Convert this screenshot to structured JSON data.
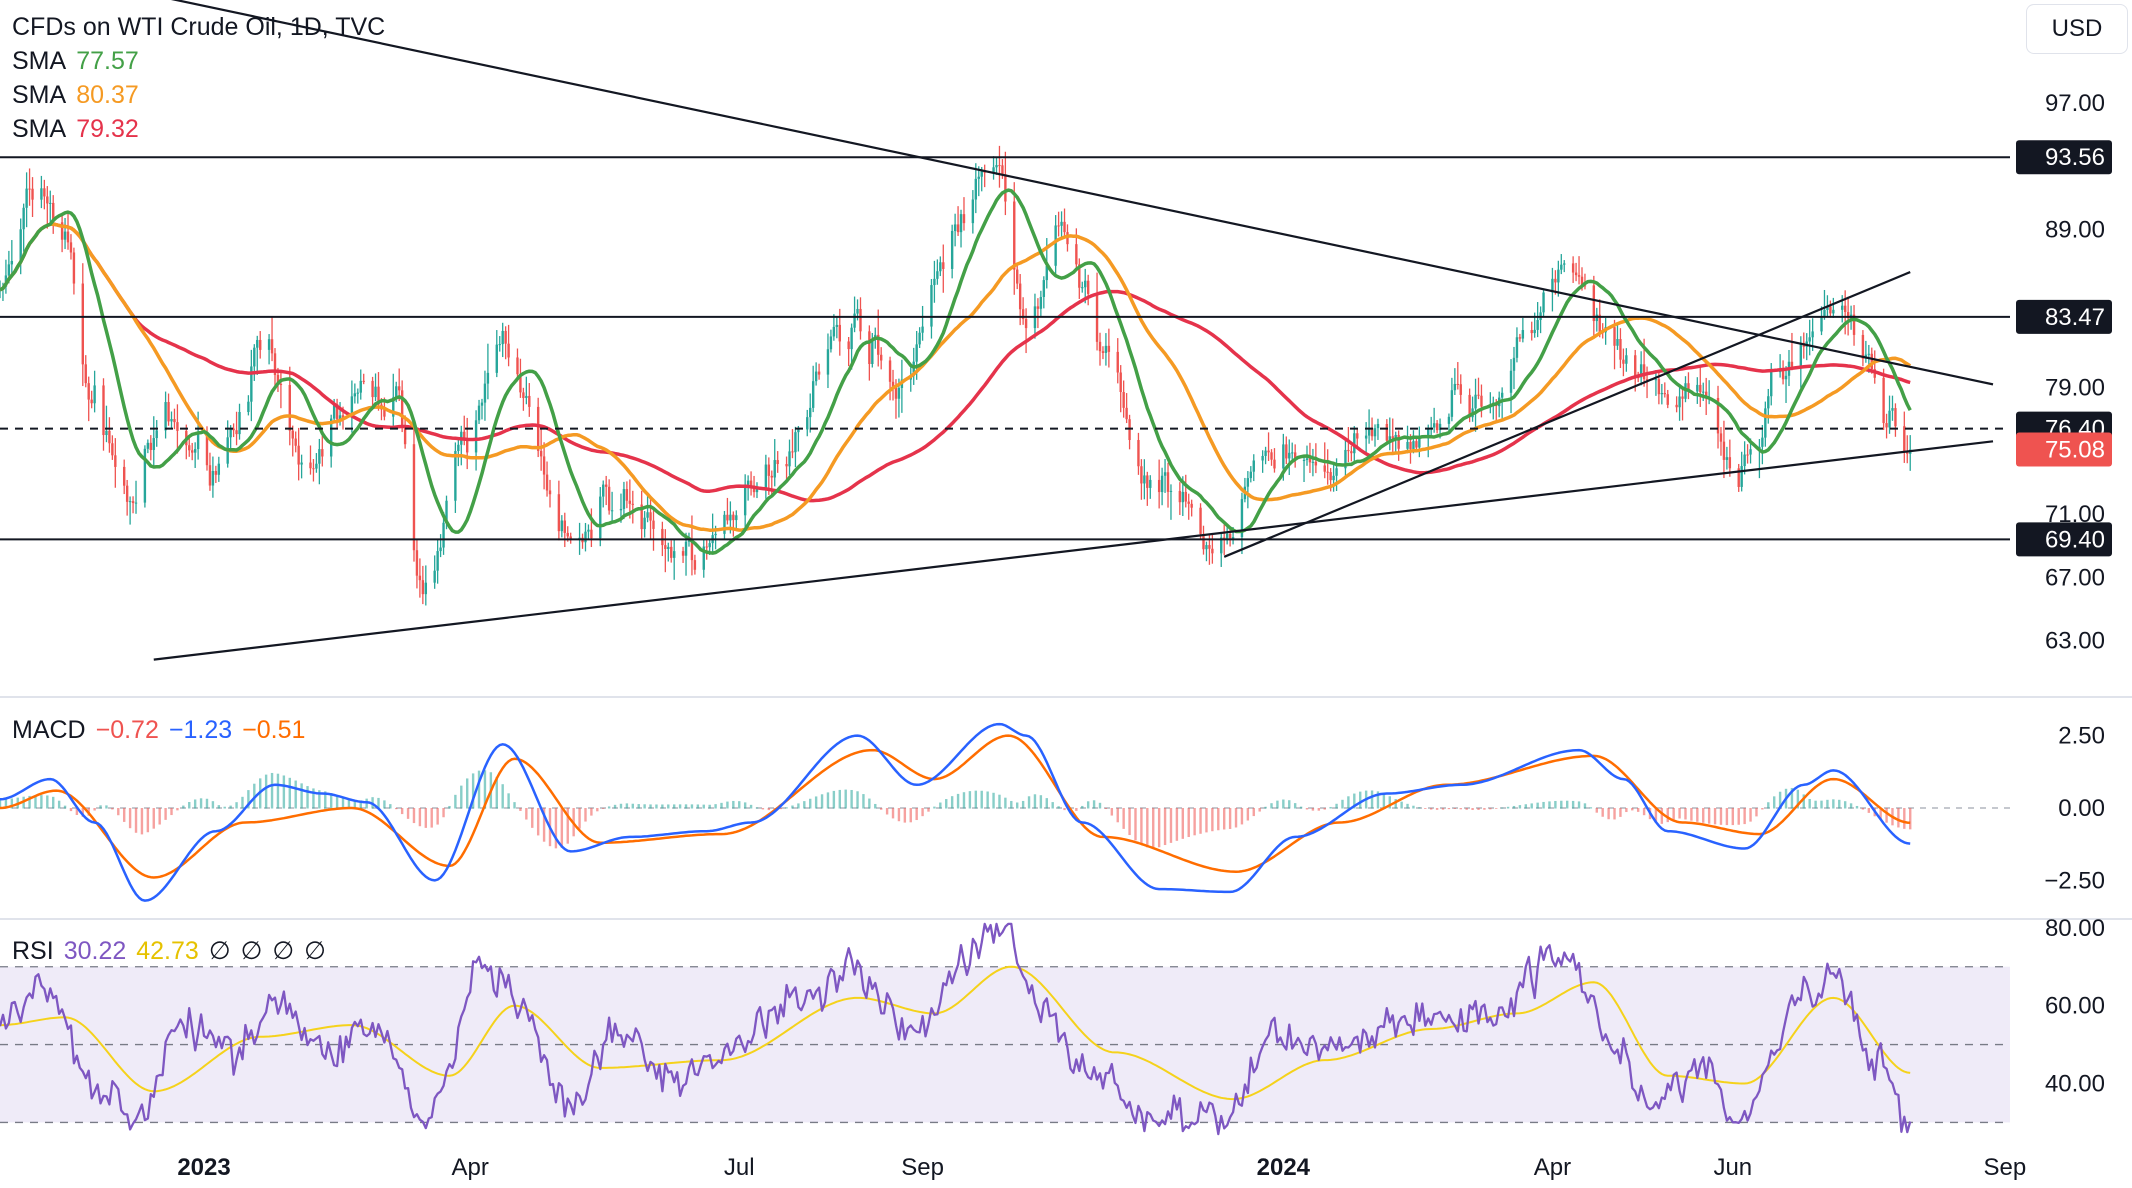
{
  "instrument": {
    "title": "CFDs on WTI Crude Oil, 1D, TVC",
    "currency": "USD"
  },
  "legend": {
    "sma_fast": {
      "label": "SMA",
      "value": "77.57",
      "color": "#43a047"
    },
    "sma_mid": {
      "label": "SMA",
      "value": "80.37",
      "color": "#f59a23"
    },
    "sma_slow": {
      "label": "SMA",
      "value": "79.32",
      "color": "#e5334b"
    },
    "macd": {
      "label": "MACD",
      "hist": "−0.72",
      "macd": "−1.23",
      "signal": "−0.51",
      "hist_color": "#ef5350",
      "macd_color": "#2962ff",
      "signal_color": "#ff6d00"
    },
    "rsi": {
      "label": "RSI",
      "value": "30.22",
      "ma": "42.73",
      "extras": [
        "∅",
        "∅",
        "∅",
        "∅"
      ],
      "color": "#7e57c2",
      "ma_color": "#f5d21b"
    }
  },
  "chart_data": [
    {
      "type": "candlestick",
      "title": "CFDs on WTI Crude Oil, 1D, TVC",
      "x_axis_labels": [
        "2023",
        "Apr",
        "Jul",
        "Sep",
        "2024",
        "Apr",
        "Jun",
        "Sep"
      ],
      "x_axis_ticks": [
        "2023-01-01",
        "2023-04-01",
        "2023-07-01",
        "2023-09-01",
        "2024-01-01",
        "2024-04-01",
        "2024-06-01",
        "2024-09-01"
      ],
      "x_range": [
        "2022-10-24",
        "2024-10-14"
      ],
      "y_ticks": [
        97.0,
        89.0,
        79.0,
        71.0,
        67.0,
        63.0
      ],
      "ylim": [
        59.5,
        103.5
      ],
      "key_levels": [
        {
          "value": 93.56,
          "label": "93.56",
          "style": "solid"
        },
        {
          "value": 83.47,
          "label": "83.47",
          "style": "solid"
        },
        {
          "value": 76.4,
          "label": "76.40",
          "style": "dashed"
        },
        {
          "value": 69.4,
          "label": "69.40",
          "style": "solid"
        }
      ],
      "last_price": {
        "value": 75.08,
        "label": "75.08",
        "color": "#ef5350"
      },
      "trendlines": [
        {
          "name": "descending-resistance",
          "points": [
            [
              "2022-12-15",
              103.8
            ],
            [
              "2024-08-28",
              79.2
            ]
          ]
        },
        {
          "name": "ascending-support",
          "points": [
            [
              "2022-12-15",
              61.8
            ],
            [
              "2024-08-28",
              75.6
            ]
          ]
        },
        {
          "name": "rising-channel",
          "points": [
            [
              "2023-12-12",
              68.3
            ],
            [
              "2024-07-31",
              86.3
            ]
          ]
        }
      ],
      "close_path": [
        [
          "2022-10-24",
          85.5
        ],
        [
          "2022-11-07",
          91.8
        ],
        [
          "2022-11-14",
          88.5
        ],
        [
          "2022-11-25",
          78.0
        ],
        [
          "2022-12-07",
          72.0
        ],
        [
          "2022-12-19",
          76.5
        ],
        [
          "2023-01-05",
          74.5
        ],
        [
          "2023-01-20",
          81.0
        ],
        [
          "2023-02-03",
          74.0
        ],
        [
          "2023-02-20",
          78.0
        ],
        [
          "2023-03-06",
          78.5
        ],
        [
          "2023-03-17",
          66.5
        ],
        [
          "2023-03-31",
          75.5
        ],
        [
          "2023-04-12",
          82.5
        ],
        [
          "2023-05-04",
          69.0
        ],
        [
          "2023-05-20",
          72.0
        ],
        [
          "2023-06-12",
          68.5
        ],
        [
          "2023-06-25",
          69.5
        ],
        [
          "2023-07-12",
          74.5
        ],
        [
          "2023-08-08",
          83.0
        ],
        [
          "2023-08-24",
          79.5
        ],
        [
          "2023-09-12",
          89.0
        ],
        [
          "2023-09-27",
          93.0
        ],
        [
          "2023-10-06",
          83.0
        ],
        [
          "2023-10-19",
          88.5
        ],
        [
          "2023-11-03",
          80.5
        ],
        [
          "2023-11-16",
          73.0
        ],
        [
          "2023-12-12",
          69.0
        ],
        [
          "2023-12-26",
          75.0
        ],
        [
          "2024-01-18",
          74.0
        ],
        [
          "2024-02-10",
          76.5
        ],
        [
          "2024-03-12",
          78.5
        ],
        [
          "2024-04-05",
          86.5
        ],
        [
          "2024-04-20",
          82.0
        ],
        [
          "2024-05-03",
          78.5
        ],
        [
          "2024-05-20",
          78.0
        ],
        [
          "2024-06-03",
          73.5
        ],
        [
          "2024-06-20",
          81.0
        ],
        [
          "2024-07-05",
          83.5
        ],
        [
          "2024-07-16",
          81.0
        ],
        [
          "2024-07-24",
          77.0
        ],
        [
          "2024-07-31",
          75.08
        ]
      ],
      "sma_values": {
        "fast": 77.57,
        "mid": 80.37,
        "slow": 79.32
      }
    },
    {
      "type": "macd",
      "title": "MACD",
      "y_ticks": [
        2.5,
        0.0,
        -2.5
      ],
      "ylim": [
        -3.8,
        3.8
      ],
      "values": {
        "histogram": -0.72,
        "macd": -1.23,
        "signal": -0.51
      },
      "macd_path": [
        [
          "2022-10-24",
          0.3
        ],
        [
          "2022-11-10",
          1.0
        ],
        [
          "2022-11-25",
          -0.5
        ],
        [
          "2022-12-12",
          -3.2
        ],
        [
          "2023-01-05",
          -0.8
        ],
        [
          "2023-01-25",
          0.8
        ],
        [
          "2023-02-10",
          0.5
        ],
        [
          "2023-02-25",
          0.2
        ],
        [
          "2023-03-20",
          -2.5
        ],
        [
          "2023-04-12",
          2.2
        ],
        [
          "2023-05-05",
          -1.5
        ],
        [
          "2023-05-25",
          -1.0
        ],
        [
          "2023-06-20",
          -0.8
        ],
        [
          "2023-07-05",
          -0.5
        ],
        [
          "2023-08-10",
          2.5
        ],
        [
          "2023-08-30",
          0.8
        ],
        [
          "2023-09-27",
          2.9
        ],
        [
          "2023-10-06",
          2.5
        ],
        [
          "2023-10-25",
          -0.5
        ],
        [
          "2023-11-20",
          -2.8
        ],
        [
          "2023-12-14",
          -2.9
        ],
        [
          "2024-01-05",
          -1.0
        ],
        [
          "2024-02-05",
          0.5
        ],
        [
          "2024-03-01",
          0.8
        ],
        [
          "2024-04-10",
          2.0
        ],
        [
          "2024-04-25",
          1.0
        ],
        [
          "2024-05-10",
          -0.8
        ],
        [
          "2024-06-05",
          -1.4
        ],
        [
          "2024-06-25",
          0.8
        ],
        [
          "2024-07-05",
          1.3
        ],
        [
          "2024-07-31",
          -1.23
        ]
      ],
      "signal_path": [
        [
          "2022-10-24",
          0.0
        ],
        [
          "2022-11-12",
          0.6
        ],
        [
          "2022-12-15",
          -2.4
        ],
        [
          "2023-01-15",
          -0.5
        ],
        [
          "2023-02-20",
          0.0
        ],
        [
          "2023-03-25",
          -2.0
        ],
        [
          "2023-04-16",
          1.7
        ],
        [
          "2023-05-15",
          -1.2
        ],
        [
          "2023-06-25",
          -0.9
        ],
        [
          "2023-08-15",
          2.0
        ],
        [
          "2023-09-05",
          1.0
        ],
        [
          "2023-09-30",
          2.5
        ],
        [
          "2023-11-01",
          -1.0
        ],
        [
          "2023-12-16",
          -2.2
        ],
        [
          "2024-01-20",
          -0.5
        ],
        [
          "2024-02-25",
          0.8
        ],
        [
          "2024-04-15",
          1.8
        ],
        [
          "2024-05-15",
          -0.5
        ],
        [
          "2024-06-10",
          -0.9
        ],
        [
          "2024-07-05",
          1.0
        ],
        [
          "2024-07-31",
          -0.51
        ]
      ]
    },
    {
      "type": "rsi",
      "title": "RSI",
      "y_ticks": [
        80.0,
        60.0,
        40.0
      ],
      "ylim": [
        26,
        82
      ],
      "bands": {
        "upper": 70,
        "middle": 50,
        "lower": 30
      },
      "values": {
        "rsi": 30.22,
        "rsi_ma": 42.73
      },
      "rsi_path": [
        [
          "2022-10-24",
          55
        ],
        [
          "2022-11-08",
          64
        ],
        [
          "2022-11-28",
          38
        ],
        [
          "2022-12-10",
          32
        ],
        [
          "2022-12-25",
          55
        ],
        [
          "2023-01-10",
          48
        ],
        [
          "2023-01-25",
          62
        ],
        [
          "2023-02-10",
          48
        ],
        [
          "2023-02-28",
          55
        ],
        [
          "2023-03-17",
          30
        ],
        [
          "2023-04-06",
          70
        ],
        [
          "2023-04-20",
          56
        ],
        [
          "2023-05-04",
          32
        ],
        [
          "2023-05-20",
          52
        ],
        [
          "2023-06-12",
          40
        ],
        [
          "2023-06-28",
          50
        ],
        [
          "2023-07-20",
          62
        ],
        [
          "2023-08-10",
          70
        ],
        [
          "2023-08-28",
          52
        ],
        [
          "2023-09-15",
          72
        ],
        [
          "2023-09-28",
          80
        ],
        [
          "2023-10-10",
          60
        ],
        [
          "2023-10-25",
          45
        ],
        [
          "2023-11-16",
          32
        ],
        [
          "2023-12-12",
          30
        ],
        [
          "2023-12-28",
          52
        ],
        [
          "2024-01-20",
          50
        ],
        [
          "2024-02-12",
          56
        ],
        [
          "2024-03-10",
          58
        ],
        [
          "2024-04-05",
          74
        ],
        [
          "2024-04-25",
          48
        ],
        [
          "2024-05-05",
          32
        ],
        [
          "2024-05-20",
          45
        ],
        [
          "2024-06-03",
          30
        ],
        [
          "2024-06-25",
          62
        ],
        [
          "2024-07-05",
          67
        ],
        [
          "2024-07-20",
          46
        ],
        [
          "2024-07-31",
          30.22
        ]
      ],
      "rsi_ma_path": [
        [
          "2022-10-24",
          55
        ],
        [
          "2022-11-15",
          57
        ],
        [
          "2022-12-15",
          38
        ],
        [
          "2023-01-20",
          52
        ],
        [
          "2023-02-20",
          55
        ],
        [
          "2023-03-25",
          42
        ],
        [
          "2023-04-16",
          60
        ],
        [
          "2023-05-15",
          44
        ],
        [
          "2023-06-25",
          46
        ],
        [
          "2023-08-10",
          62
        ],
        [
          "2023-09-05",
          58
        ],
        [
          "2023-10-01",
          70
        ],
        [
          "2023-11-05",
          48
        ],
        [
          "2023-12-15",
          36
        ],
        [
          "2024-01-15",
          46
        ],
        [
          "2024-02-20",
          54
        ],
        [
          "2024-03-20",
          58
        ],
        [
          "2024-04-15",
          66
        ],
        [
          "2024-05-10",
          42
        ],
        [
          "2024-06-05",
          40
        ],
        [
          "2024-07-05",
          62
        ],
        [
          "2024-07-31",
          42.73
        ]
      ]
    }
  ]
}
